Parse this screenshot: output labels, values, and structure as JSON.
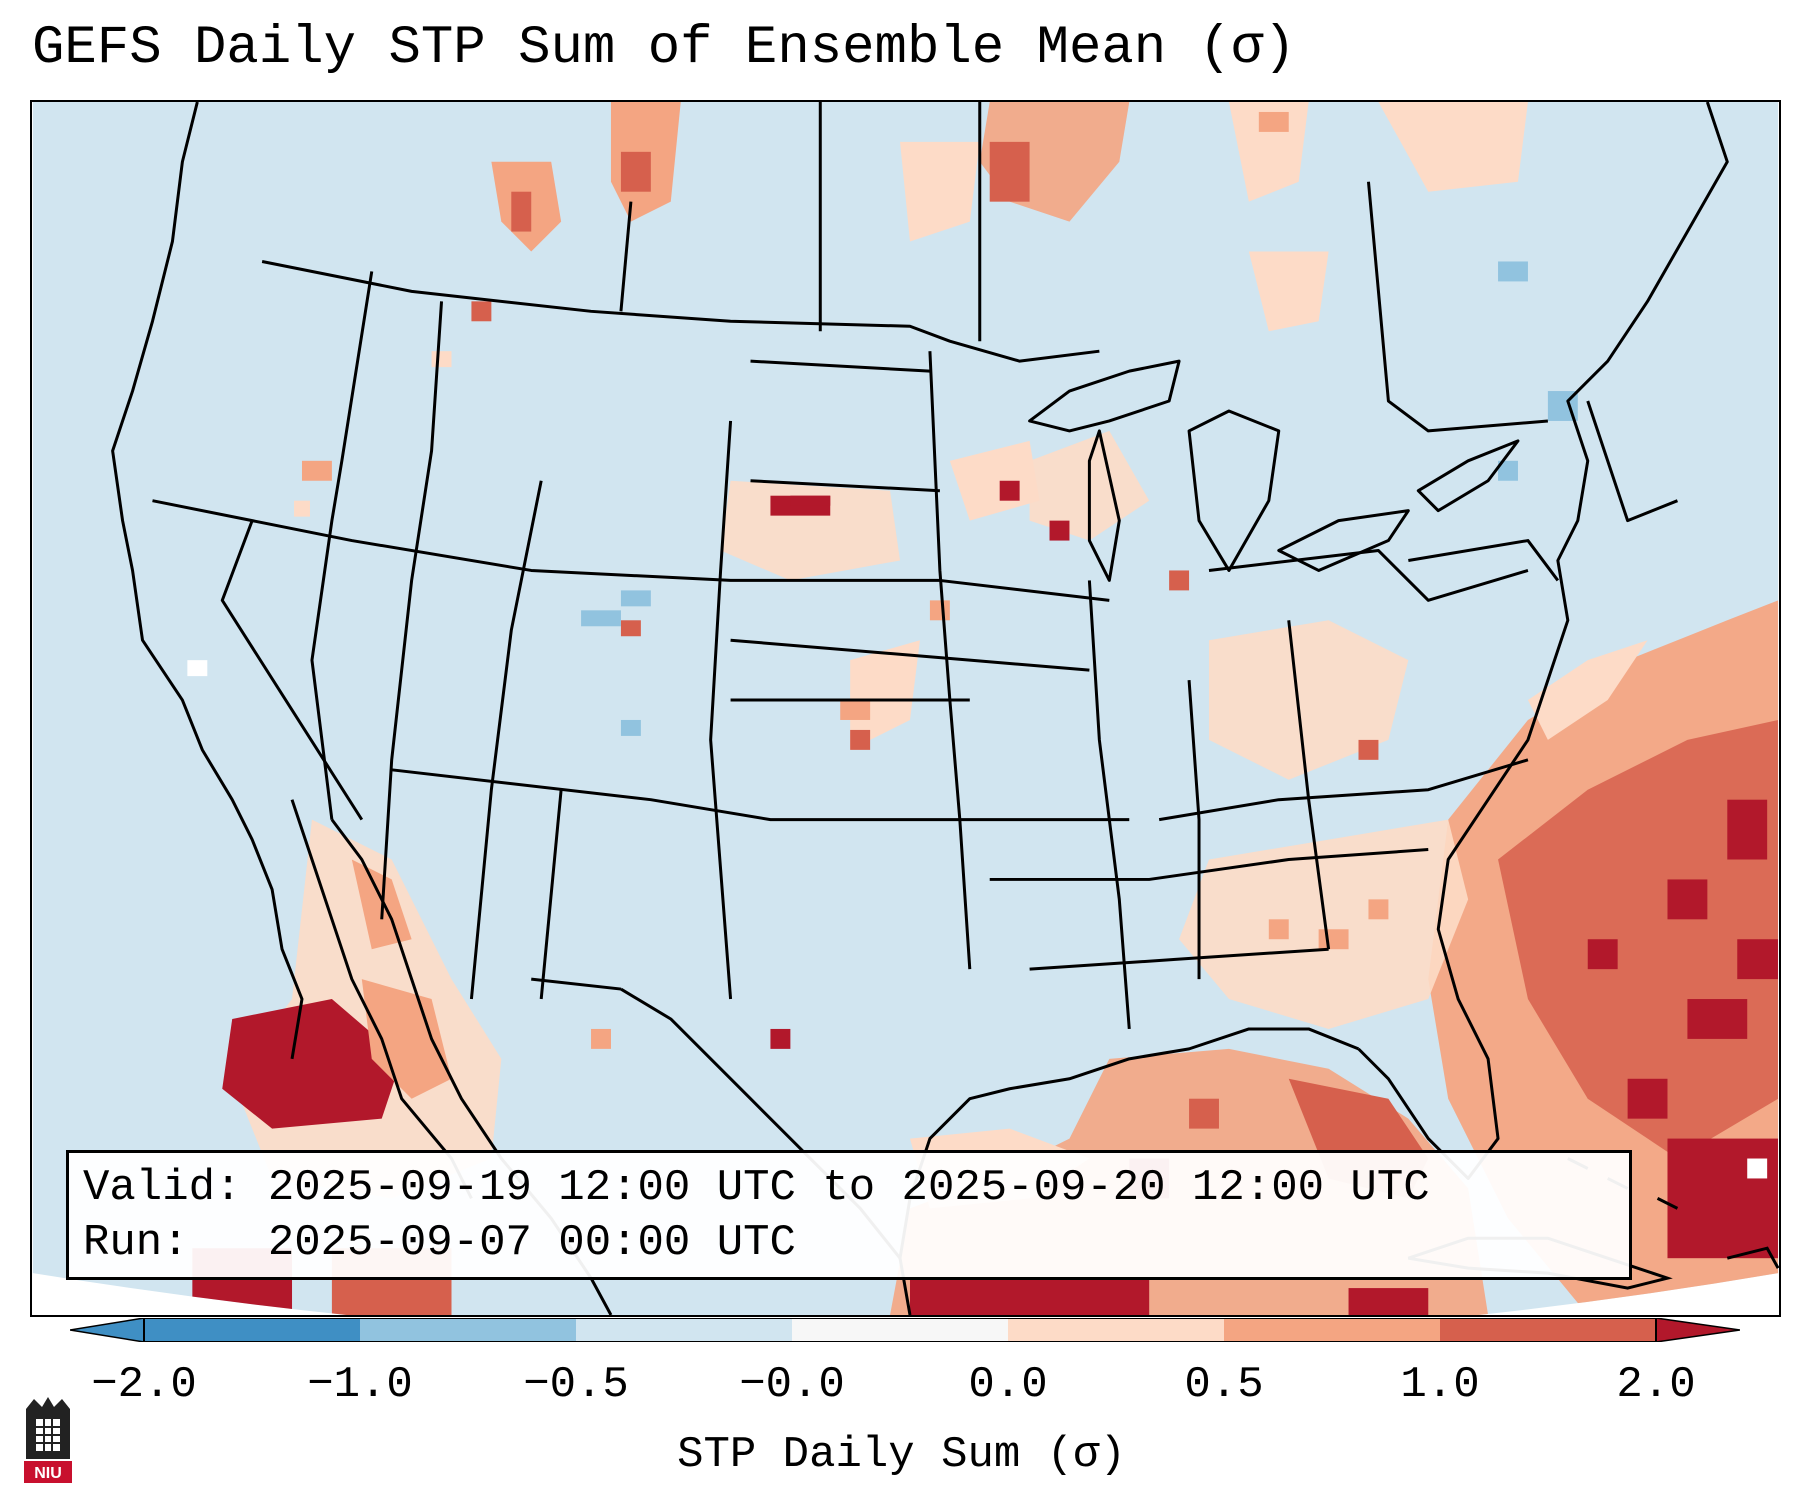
{
  "title": "GEFS Daily STP Sum of Ensemble Mean (σ)",
  "info": {
    "valid_label": "Valid:",
    "valid_value": "2025-09-19 12:00 UTC to 2025-09-20 12:00 UTC",
    "run_label": "Run:",
    "run_value": "2025-09-07 00:00 UTC"
  },
  "colorbar": {
    "label": "STP Daily Sum (σ)",
    "ticks": [
      "−2.0",
      "−1.0",
      "−0.5",
      "−0.0",
      "0.0",
      "0.5",
      "1.0",
      "2.0"
    ],
    "colors": [
      "#3f8fc4",
      "#91c3df",
      "#d1e5f0",
      "#f7f7f7",
      "#fddbc7",
      "#f4a582",
      "#d6604d",
      "#b2182b"
    ]
  },
  "logo": {
    "text": "NIU"
  },
  "map": {
    "background_color": "#d1e5f0",
    "anomaly_regions": [
      "northern plains",
      "great lakes",
      "southeast us",
      "gulf of mexico",
      "western atlantic",
      "northwest mexico",
      "caribbean"
    ]
  }
}
